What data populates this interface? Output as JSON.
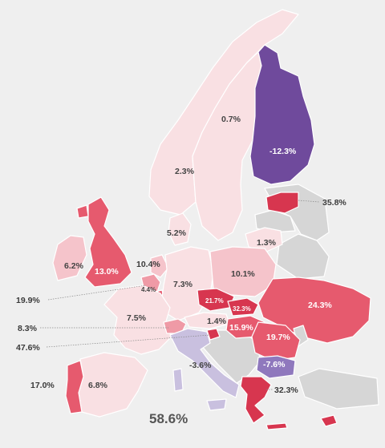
{
  "colors": {
    "background": "#efefef",
    "no_data": "#d6d6d6",
    "light_pink": "#f9e0e3",
    "pink": "#f5c4cb",
    "mid_pink": "#ef9aa6",
    "red": "#e65a6e",
    "dark_red": "#d7364f",
    "purple": "#6f4a9c",
    "light_purple": "#c9c0df",
    "mid_purple": "#8f78bd"
  },
  "regions": [
    {
      "id": "norway",
      "value": "2.3%"
    },
    {
      "id": "sweden",
      "value": "0.7%"
    },
    {
      "id": "finland",
      "value": "-12.3%"
    },
    {
      "id": "estonia",
      "value": "35.8%"
    },
    {
      "id": "lithuania",
      "value": "1.3%"
    },
    {
      "id": "denmark",
      "value": "5.2%"
    },
    {
      "id": "ireland",
      "value": "6.2%"
    },
    {
      "id": "united-kingdom",
      "value": "13.0%"
    },
    {
      "id": "netherlands",
      "value": "10.4%"
    },
    {
      "id": "luxembourg",
      "value": "4.4%"
    },
    {
      "id": "belgium",
      "value": "19.9%"
    },
    {
      "id": "germany",
      "value": "7.3%"
    },
    {
      "id": "poland",
      "value": "10.1%"
    },
    {
      "id": "czechia",
      "value": "21.7%"
    },
    {
      "id": "slovakia",
      "value": "32.3%"
    },
    {
      "id": "austria",
      "value": "1.4%"
    },
    {
      "id": "hungary",
      "value": "15.9%"
    },
    {
      "id": "romania",
      "value": "19.7%"
    },
    {
      "id": "ukraine",
      "value": "24.3%"
    },
    {
      "id": "france",
      "value": "7.5%"
    },
    {
      "id": "switzerland",
      "value": "8.3%"
    },
    {
      "id": "slovenia",
      "value": "47.6%"
    },
    {
      "id": "italy",
      "value": "-3.6%"
    },
    {
      "id": "bulgaria",
      "value": "-7.6%"
    },
    {
      "id": "greece",
      "value": "32.3%"
    },
    {
      "id": "portugal",
      "value": "17.0%"
    },
    {
      "id": "spain",
      "value": "6.8%"
    },
    {
      "id": "cyprus",
      "value": "58.6%"
    }
  ]
}
